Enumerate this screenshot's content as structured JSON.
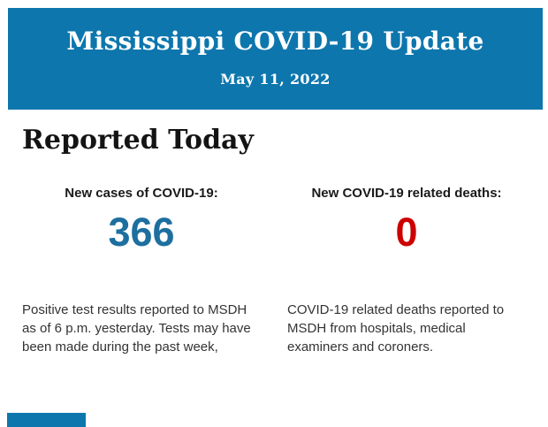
{
  "banner": {
    "title": "Mississippi COVID-19 Update",
    "date": "May 11, 2022"
  },
  "section": {
    "heading": "Reported Today"
  },
  "stats": [
    {
      "label": "New cases of COVID-19:",
      "value": "366",
      "description": "Positive test results reported to MSDH as of 6 p.m. yesterday. Tests may have been made during the past week,"
    },
    {
      "label": "New COVID-19 related deaths:",
      "value": "0",
      "description": "COVID-19 related deaths reported to MSDH from hospitals, medical examiners and coroners."
    }
  ],
  "colors": {
    "banner_blue": "#0d76ad",
    "cases_blue": "#1d6f9f",
    "deaths_red": "#cc0000"
  }
}
